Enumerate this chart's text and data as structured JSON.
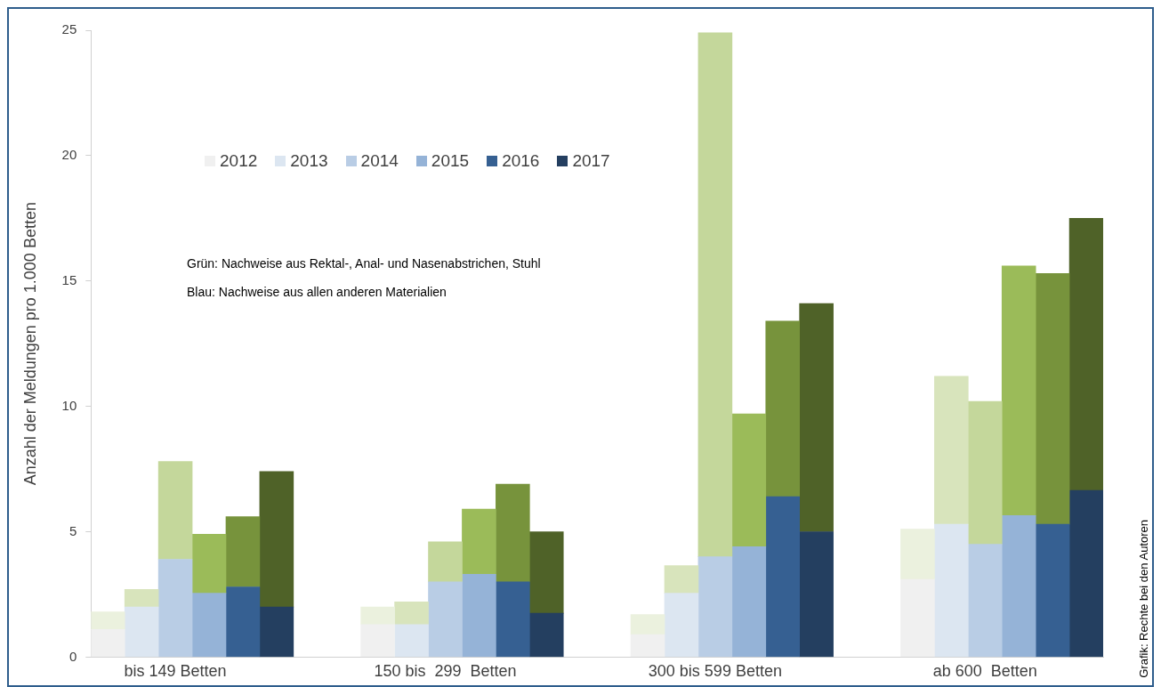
{
  "chart_data": {
    "type": "bar",
    "ylabel": "Anzahl der Meldungen pro 1.000 Betten",
    "categories": [
      null,
      null,
      "bis 149 Betten",
      null,
      null,
      null,
      null,
      null,
      null,
      null,
      "150 bis  299  Betten",
      null,
      null,
      null,
      null,
      null,
      null,
      null,
      "300 bis 599 Betten",
      null,
      null,
      null,
      null,
      null,
      null,
      null,
      "ab 600  Betten",
      null,
      null,
      null
    ],
    "stacked": true,
    "ylim": [
      0,
      25
    ],
    "yticks": [
      0,
      5,
      10,
      15,
      20,
      25
    ],
    "grid": false,
    "legend": "top left",
    "annotations": [
      "Grün: Nachweise aus Rektal-, Anal- und Nasenabstrichen, Stuhl",
      "Blau: Nachweise aus allen anderen Materialien",
      "Grafik: Rechte bei den Autoren"
    ],
    "series": [
      {
        "name": "2012",
        "color": "#f0f0f0",
        "values": [
          1.1,
          null,
          null,
          null,
          null,
          null,
          null,
          null,
          1.3,
          null,
          null,
          null,
          null,
          null,
          null,
          null,
          0.9,
          null,
          null,
          null,
          null,
          null,
          null,
          null,
          3.1,
          null,
          null,
          null,
          null,
          null
        ]
      },
      {
        "color": "#ebf1de",
        "values": [
          0.7,
          null,
          null,
          null,
          null,
          null,
          null,
          null,
          0.7,
          null,
          null,
          null,
          null,
          null,
          null,
          null,
          0.8,
          null,
          null,
          null,
          null,
          null,
          null,
          null,
          2.0,
          null,
          null,
          null,
          null,
          null
        ]
      },
      {
        "name": "2013",
        "color": "#dce6f1",
        "values": [
          null,
          2.0,
          null,
          null,
          null,
          null,
          null,
          null,
          null,
          1.3,
          null,
          null,
          null,
          null,
          null,
          null,
          null,
          2.55,
          null,
          null,
          null,
          null,
          null,
          null,
          null,
          5.3,
          null,
          null,
          null,
          null
        ]
      },
      {
        "color": "#d8e4bc",
        "values": [
          null,
          0.7,
          null,
          null,
          null,
          null,
          null,
          null,
          null,
          0.9,
          null,
          null,
          null,
          null,
          null,
          null,
          null,
          1.1,
          null,
          null,
          null,
          null,
          null,
          null,
          null,
          5.9,
          null,
          null,
          null,
          null
        ]
      },
      {
        "name": "2014",
        "color": "#b9cde5",
        "values": [
          null,
          null,
          3.9,
          null,
          null,
          null,
          null,
          null,
          null,
          null,
          3.0,
          null,
          null,
          null,
          null,
          null,
          null,
          null,
          4.0,
          null,
          null,
          null,
          null,
          null,
          null,
          null,
          4.5,
          null,
          null,
          null
        ]
      },
      {
        "color": "#c4d79b",
        "values": [
          null,
          null,
          3.9,
          null,
          null,
          null,
          null,
          null,
          null,
          null,
          1.6,
          null,
          null,
          null,
          null,
          null,
          null,
          null,
          20.9,
          null,
          null,
          null,
          null,
          null,
          null,
          null,
          5.7,
          null,
          null,
          null
        ]
      },
      {
        "name": "2015",
        "color": "#95b3d7",
        "values": [
          null,
          null,
          null,
          2.55,
          null,
          null,
          null,
          null,
          null,
          null,
          null,
          3.3,
          null,
          null,
          null,
          null,
          null,
          null,
          null,
          4.4,
          null,
          null,
          null,
          null,
          null,
          null,
          null,
          5.65,
          null,
          null
        ]
      },
      {
        "color": "#9bbb59",
        "values": [
          null,
          null,
          null,
          2.35,
          null,
          null,
          null,
          null,
          null,
          null,
          null,
          2.6,
          null,
          null,
          null,
          null,
          null,
          null,
          null,
          5.3,
          null,
          null,
          null,
          null,
          null,
          null,
          null,
          9.95,
          null,
          null
        ]
      },
      {
        "name": "2016",
        "color": "#366092",
        "values": [
          null,
          null,
          null,
          null,
          2.8,
          null,
          null,
          null,
          null,
          null,
          null,
          null,
          3.0,
          null,
          null,
          null,
          null,
          null,
          null,
          null,
          6.4,
          null,
          null,
          null,
          null,
          null,
          null,
          null,
          5.3,
          null
        ]
      },
      {
        "color": "#77933c",
        "values": [
          null,
          null,
          null,
          null,
          2.8,
          null,
          null,
          null,
          null,
          null,
          null,
          null,
          3.9,
          null,
          null,
          null,
          null,
          null,
          null,
          null,
          7.0,
          null,
          null,
          null,
          null,
          null,
          null,
          null,
          10.0,
          null
        ]
      },
      {
        "name": "2017",
        "color": "#243f60",
        "values": [
          null,
          null,
          null,
          null,
          null,
          2.0,
          null,
          null,
          null,
          null,
          null,
          null,
          null,
          1.75,
          null,
          null,
          null,
          null,
          null,
          null,
          null,
          5.0,
          null,
          null,
          null,
          null,
          null,
          null,
          null,
          6.65
        ]
      },
      {
        "color": "#4f6228",
        "values": [
          null,
          null,
          null,
          null,
          null,
          5.4,
          null,
          null,
          null,
          null,
          null,
          null,
          null,
          3.25,
          null,
          null,
          null,
          null,
          null,
          null,
          null,
          9.1,
          null,
          null,
          null,
          null,
          null,
          null,
          null,
          10.85
        ]
      }
    ]
  }
}
